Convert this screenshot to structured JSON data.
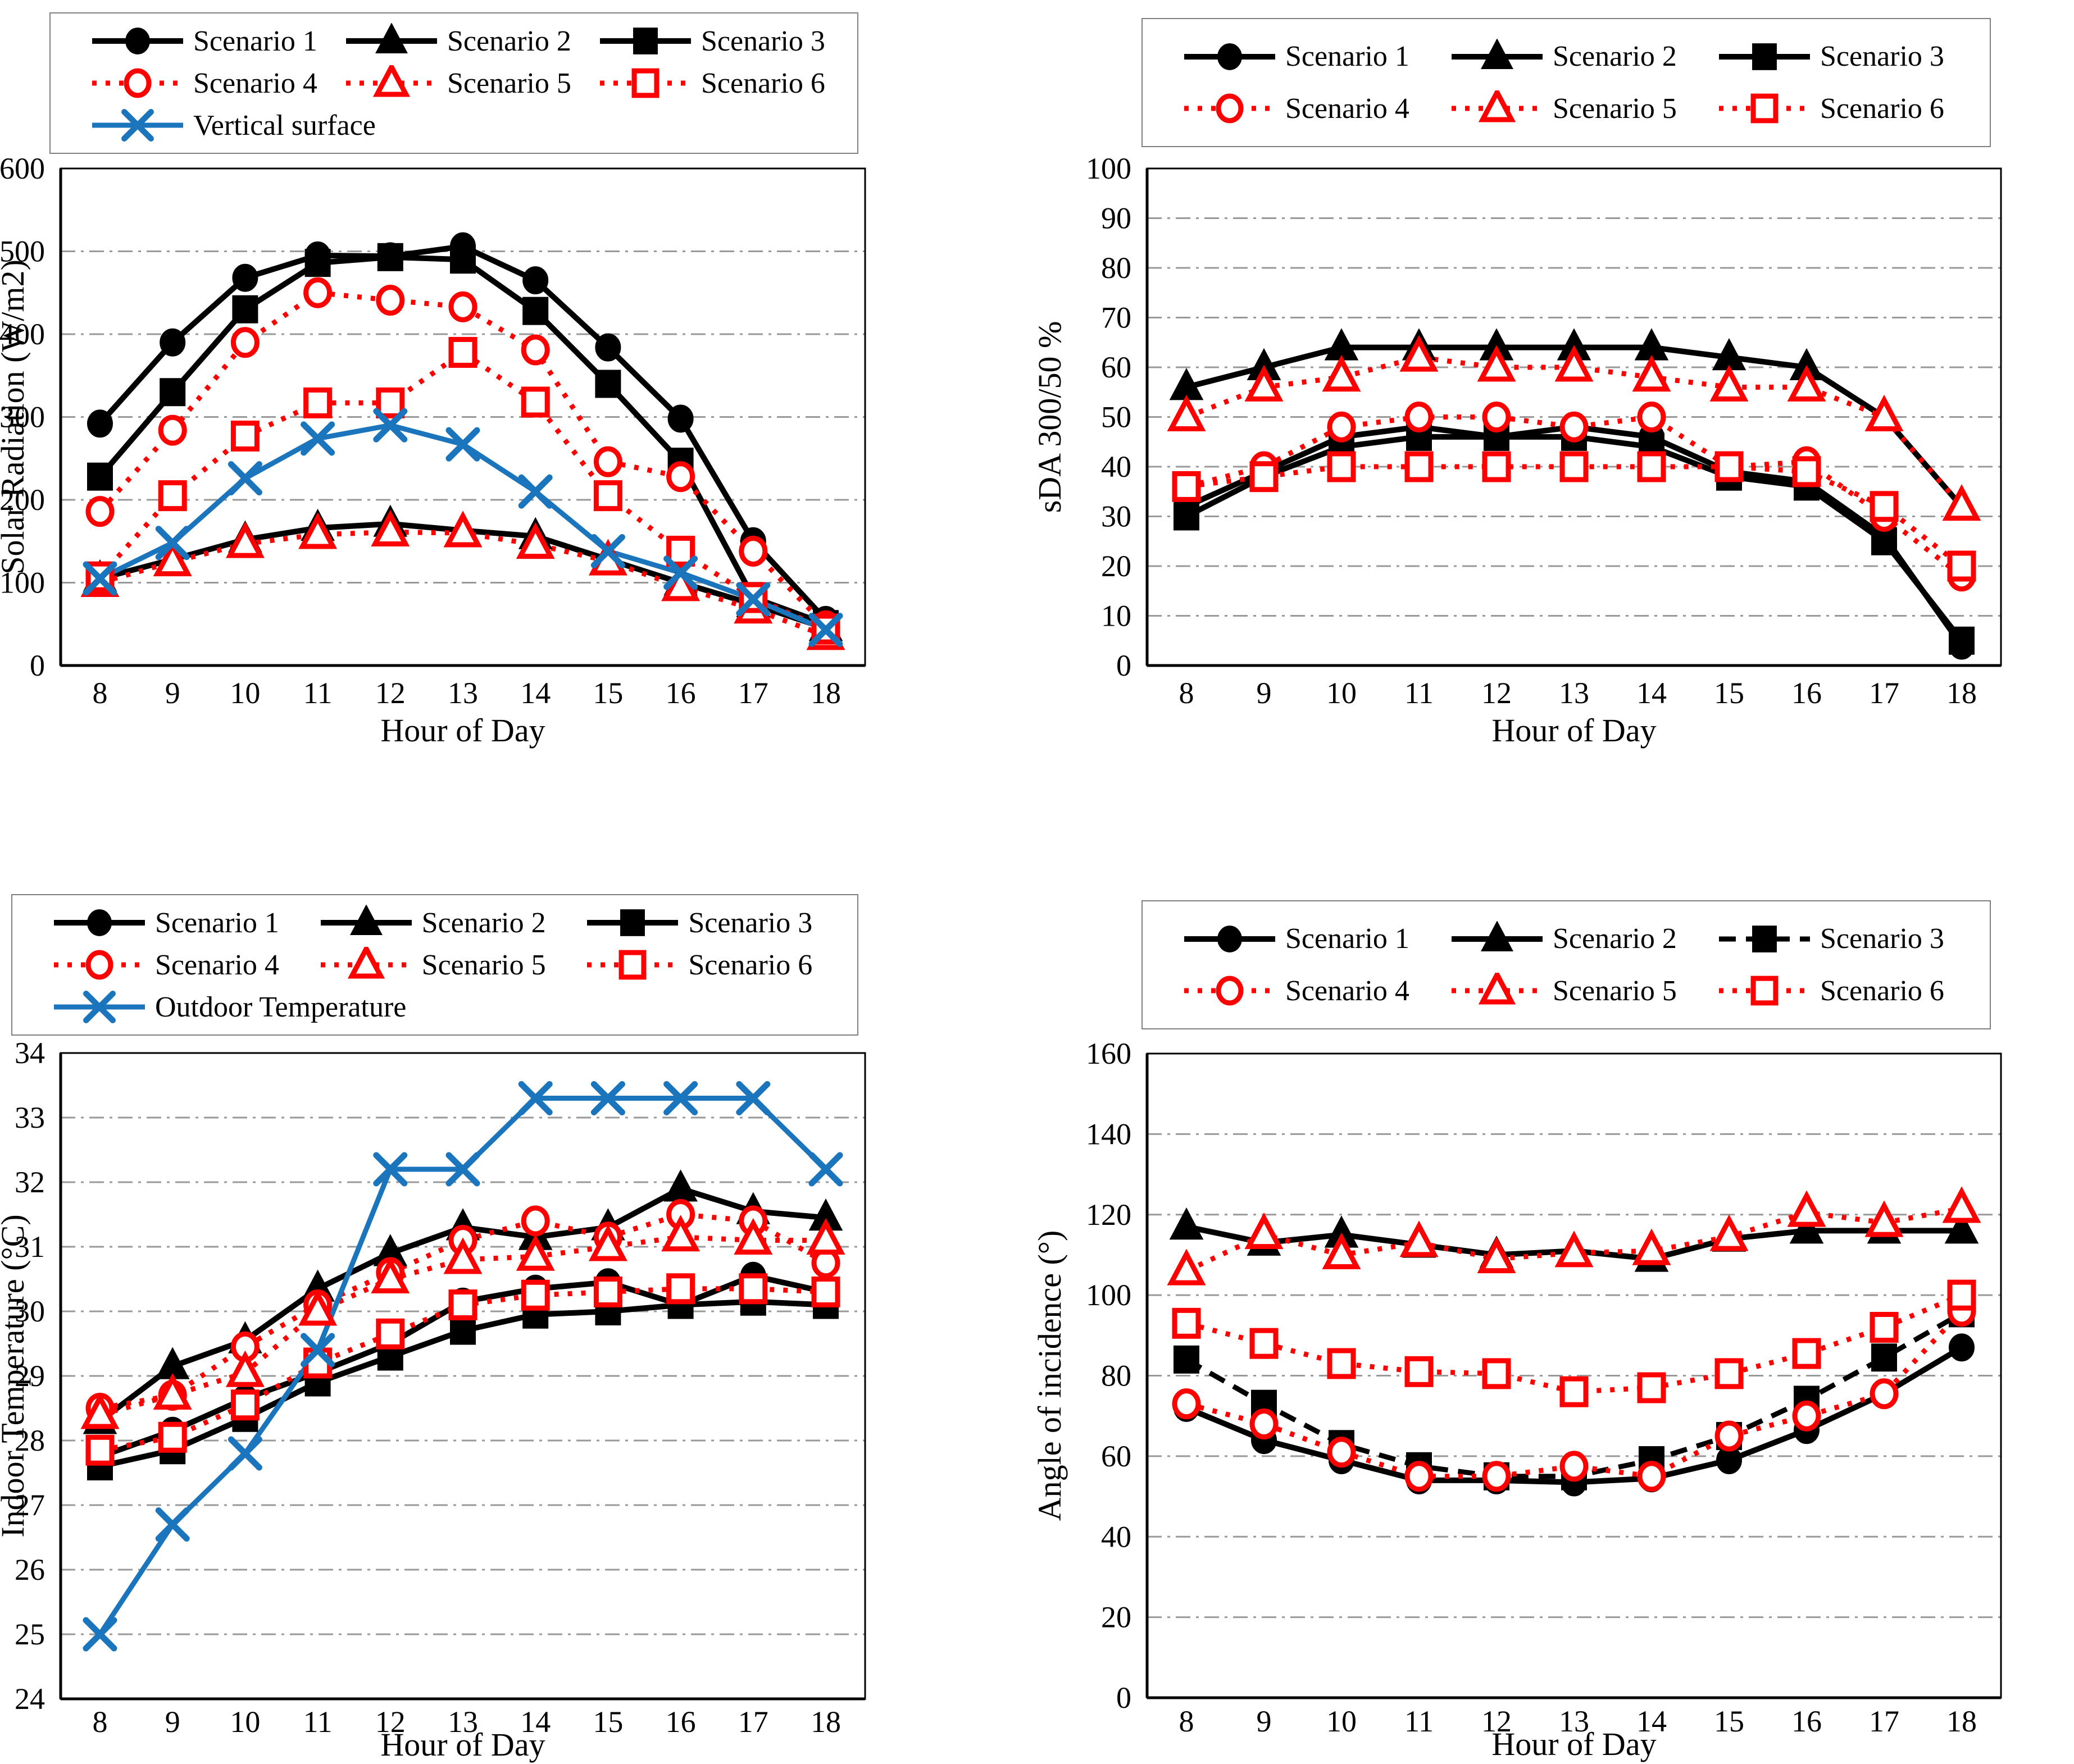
{
  "page": {
    "background": "#ffffff"
  },
  "colors": {
    "black": "#000000",
    "red": "#ff0000",
    "blue": "#1b75bc",
    "grid": "#999999"
  },
  "chart_data": [
    {
      "name": "solar-radiation",
      "type": "line",
      "title": "",
      "xlabel": "Hour of Day",
      "ylabel": "Solar Radiation (W/m2)",
      "x": [
        8,
        9,
        10,
        11,
        12,
        13,
        14,
        15,
        16,
        17,
        18
      ],
      "ylim": [
        0,
        600
      ],
      "ystep": 100,
      "grid": true,
      "legend_rows": [
        [
          "Scenario 1",
          "Scenario 2",
          "Scenario 3"
        ],
        [
          "Scenario 4",
          "Scenario 5",
          "Scenario 6"
        ],
        [
          "Vertical surface"
        ]
      ],
      "series": [
        {
          "name": "Scenario 1",
          "color": "#000000",
          "line": "solid",
          "marker": "circle",
          "markerfill": "filled",
          "values": [
            292,
            390,
            468,
            495,
            494,
            506,
            465,
            384,
            298,
            150,
            55
          ]
        },
        {
          "name": "Scenario 2",
          "color": "#000000",
          "line": "solid",
          "marker": "triangle",
          "markerfill": "filled",
          "values": [
            105,
            128,
            152,
            166,
            171,
            163,
            156,
            128,
            100,
            74,
            45
          ]
        },
        {
          "name": "Scenario 3",
          "color": "#000000",
          "line": "solid",
          "marker": "square",
          "markerfill": "filled",
          "values": [
            228,
            330,
            430,
            486,
            493,
            490,
            428,
            340,
            246,
            82,
            50
          ]
        },
        {
          "name": "Scenario 4",
          "color": "#ff0000",
          "line": "dotted",
          "marker": "circle",
          "markerfill": "open",
          "values": [
            186,
            284,
            390,
            450,
            441,
            433,
            381,
            246,
            228,
            138,
            48
          ]
        },
        {
          "name": "Scenario 5",
          "color": "#ff0000",
          "line": "dotted",
          "marker": "triangle",
          "markerfill": "open",
          "values": [
            100,
            125,
            147,
            158,
            161,
            160,
            146,
            126,
            95,
            68,
            36
          ]
        },
        {
          "name": "Scenario 6",
          "color": "#ff0000",
          "line": "dotted",
          "marker": "square",
          "markerfill": "open",
          "values": [
            107,
            205,
            277,
            317,
            317,
            378,
            318,
            205,
            138,
            82,
            44
          ]
        },
        {
          "name": "Vertical surface",
          "color": "#1b75bc",
          "line": "solid",
          "marker": "x",
          "markerfill": "open",
          "values": [
            105,
            148,
            226,
            274,
            290,
            267,
            210,
            138,
            112,
            80,
            43
          ]
        }
      ]
    },
    {
      "name": "sda",
      "type": "line",
      "title": "",
      "xlabel": "Hour of Day",
      "ylabel": "sDA 300/50 %",
      "x": [
        8,
        9,
        10,
        11,
        12,
        13,
        14,
        15,
        16,
        17,
        18
      ],
      "ylim": [
        0,
        100
      ],
      "ystep": 10,
      "grid": true,
      "legend_rows": [
        [
          "Scenario 1",
          "Scenario 2",
          "Scenario 3"
        ],
        [
          "Scenario 4",
          "Scenario 5",
          "Scenario 6"
        ]
      ],
      "series": [
        {
          "name": "Scenario 1",
          "color": "#000000",
          "line": "solid",
          "marker": "circle",
          "markerfill": "filled",
          "values": [
            32,
            39,
            46,
            48,
            46,
            48,
            46,
            39,
            37,
            26,
            4
          ]
        },
        {
          "name": "Scenario 2",
          "color": "#000000",
          "line": "solid",
          "marker": "triangle",
          "markerfill": "filled",
          "values": [
            56,
            60,
            64,
            64,
            64,
            64,
            64,
            62,
            60,
            50,
            32
          ]
        },
        {
          "name": "Scenario 3",
          "color": "#000000",
          "line": "solid",
          "marker": "square",
          "markerfill": "filled",
          "values": [
            30,
            38,
            44,
            46,
            46,
            46,
            44,
            38,
            36,
            25,
            5
          ]
        },
        {
          "name": "Scenario 4",
          "color": "#ff0000",
          "line": "dotted",
          "marker": "circle",
          "markerfill": "open",
          "values": [
            36,
            40,
            48,
            50,
            50,
            48,
            50,
            40,
            41,
            30,
            18
          ]
        },
        {
          "name": "Scenario 5",
          "color": "#ff0000",
          "line": "dotted",
          "marker": "triangle",
          "markerfill": "open",
          "values": [
            50,
            56,
            58,
            62,
            60,
            60,
            58,
            56,
            56,
            50,
            32
          ]
        },
        {
          "name": "Scenario 6",
          "color": "#ff0000",
          "line": "dotted",
          "marker": "square",
          "markerfill": "open",
          "values": [
            36,
            38,
            40,
            40,
            40,
            40,
            40,
            40,
            39,
            32,
            20
          ]
        }
      ]
    },
    {
      "name": "indoor-temperature",
      "type": "line",
      "title": "",
      "xlabel": "Hour of Day",
      "ylabel": "Indoor Temperature (°C)",
      "x": [
        8,
        9,
        10,
        11,
        12,
        13,
        14,
        15,
        16,
        17,
        18
      ],
      "ylim": [
        24,
        34
      ],
      "ystep": 1,
      "grid": true,
      "legend_rows": [
        [
          "Scenario 1",
          "Scenario 2",
          "Scenario 3"
        ],
        [
          "Scenario 4",
          "Scenario 5",
          "Scenario 6"
        ],
        [
          "Outdoor Temperature"
        ]
      ],
      "series": [
        {
          "name": "Scenario 1",
          "color": "#000000",
          "line": "solid",
          "marker": "circle",
          "markerfill": "filled",
          "values": [
            27.75,
            28.15,
            28.65,
            29.05,
            29.5,
            30.15,
            30.35,
            30.45,
            30.1,
            30.55,
            30.3
          ]
        },
        {
          "name": "Scenario 2",
          "color": "#000000",
          "line": "solid",
          "marker": "triangle",
          "markerfill": "filled",
          "values": [
            28.3,
            29.15,
            29.55,
            30.35,
            30.9,
            31.3,
            31.15,
            31.3,
            31.9,
            31.55,
            31.45
          ]
        },
        {
          "name": "Scenario 3",
          "color": "#000000",
          "line": "solid",
          "marker": "square",
          "markerfill": "filled",
          "values": [
            27.6,
            27.85,
            28.35,
            28.9,
            29.3,
            29.7,
            29.95,
            30.0,
            30.1,
            30.15,
            30.1
          ]
        },
        {
          "name": "Scenario 4",
          "color": "#ff0000",
          "line": "dotted",
          "marker": "circle",
          "markerfill": "open",
          "values": [
            28.5,
            28.7,
            29.45,
            30.1,
            30.6,
            31.1,
            31.4,
            31.15,
            31.5,
            31.4,
            30.75
          ]
        },
        {
          "name": "Scenario 5",
          "color": "#ff0000",
          "line": "dotted",
          "marker": "triangle",
          "markerfill": "open",
          "values": [
            28.4,
            28.7,
            29.05,
            30.0,
            30.5,
            30.8,
            30.85,
            31.0,
            31.15,
            31.1,
            31.1
          ]
        },
        {
          "name": "Scenario 6",
          "color": "#ff0000",
          "line": "dotted",
          "marker": "square",
          "markerfill": "open",
          "values": [
            27.85,
            28.05,
            28.55,
            29.2,
            29.65,
            30.1,
            30.25,
            30.3,
            30.35,
            30.35,
            30.3
          ]
        },
        {
          "name": "Outdoor Temperature",
          "color": "#1b75bc",
          "line": "solid",
          "marker": "x",
          "markerfill": "open",
          "values": [
            25.0,
            26.7,
            27.8,
            29.4,
            32.2,
            32.2,
            33.3,
            33.3,
            33.3,
            33.3,
            32.2
          ]
        }
      ]
    },
    {
      "name": "angle-of-incidence",
      "type": "line",
      "title": "",
      "xlabel": "Hour of Day",
      "ylabel": "Angle of incidence (°)",
      "x": [
        8,
        9,
        10,
        11,
        12,
        13,
        14,
        15,
        16,
        17,
        18
      ],
      "ylim": [
        0,
        160
      ],
      "ystep": 20,
      "grid": true,
      "legend_rows": [
        [
          "Scenario 1",
          "Scenario 2",
          "Scenario 3"
        ],
        [
          "Scenario 4",
          "Scenario 5",
          "Scenario 6"
        ]
      ],
      "series": [
        {
          "name": "Scenario 1",
          "color": "#000000",
          "line": "solid",
          "marker": "circle",
          "markerfill": "filled",
          "values": [
            72,
            64,
            59,
            54,
            54,
            53.5,
            54.5,
            59,
            66.5,
            75.5,
            87
          ]
        },
        {
          "name": "Scenario 2",
          "color": "#000000",
          "line": "solid",
          "marker": "triangle",
          "markerfill": "filled",
          "values": [
            117,
            113,
            115,
            112.5,
            110,
            111,
            109,
            114,
            116,
            116,
            116
          ]
        },
        {
          "name": "Scenario 3",
          "color": "#000000",
          "line": "dashed",
          "marker": "square",
          "markerfill": "filled",
          "values": [
            84,
            73,
            63,
            57.5,
            55,
            55,
            59,
            65,
            74,
            84.5,
            95.5
          ]
        },
        {
          "name": "Scenario 4",
          "color": "#ff0000",
          "line": "dotted",
          "marker": "circle",
          "markerfill": "open",
          "values": [
            73,
            68,
            61,
            55,
            55,
            57.5,
            55,
            65,
            70,
            75.5,
            96
          ]
        },
        {
          "name": "Scenario 5",
          "color": "#ff0000",
          "line": "dotted",
          "marker": "triangle",
          "markerfill": "open",
          "values": [
            106,
            115,
            110,
            113,
            109,
            110.5,
            111,
            114.5,
            120.5,
            118,
            121.5
          ]
        },
        {
          "name": "Scenario 6",
          "color": "#ff0000",
          "line": "dotted",
          "marker": "square",
          "markerfill": "open",
          "values": [
            93,
            88,
            83,
            81,
            80.5,
            76,
            77,
            80.5,
            85.5,
            92,
            100
          ]
        }
      ]
    }
  ]
}
